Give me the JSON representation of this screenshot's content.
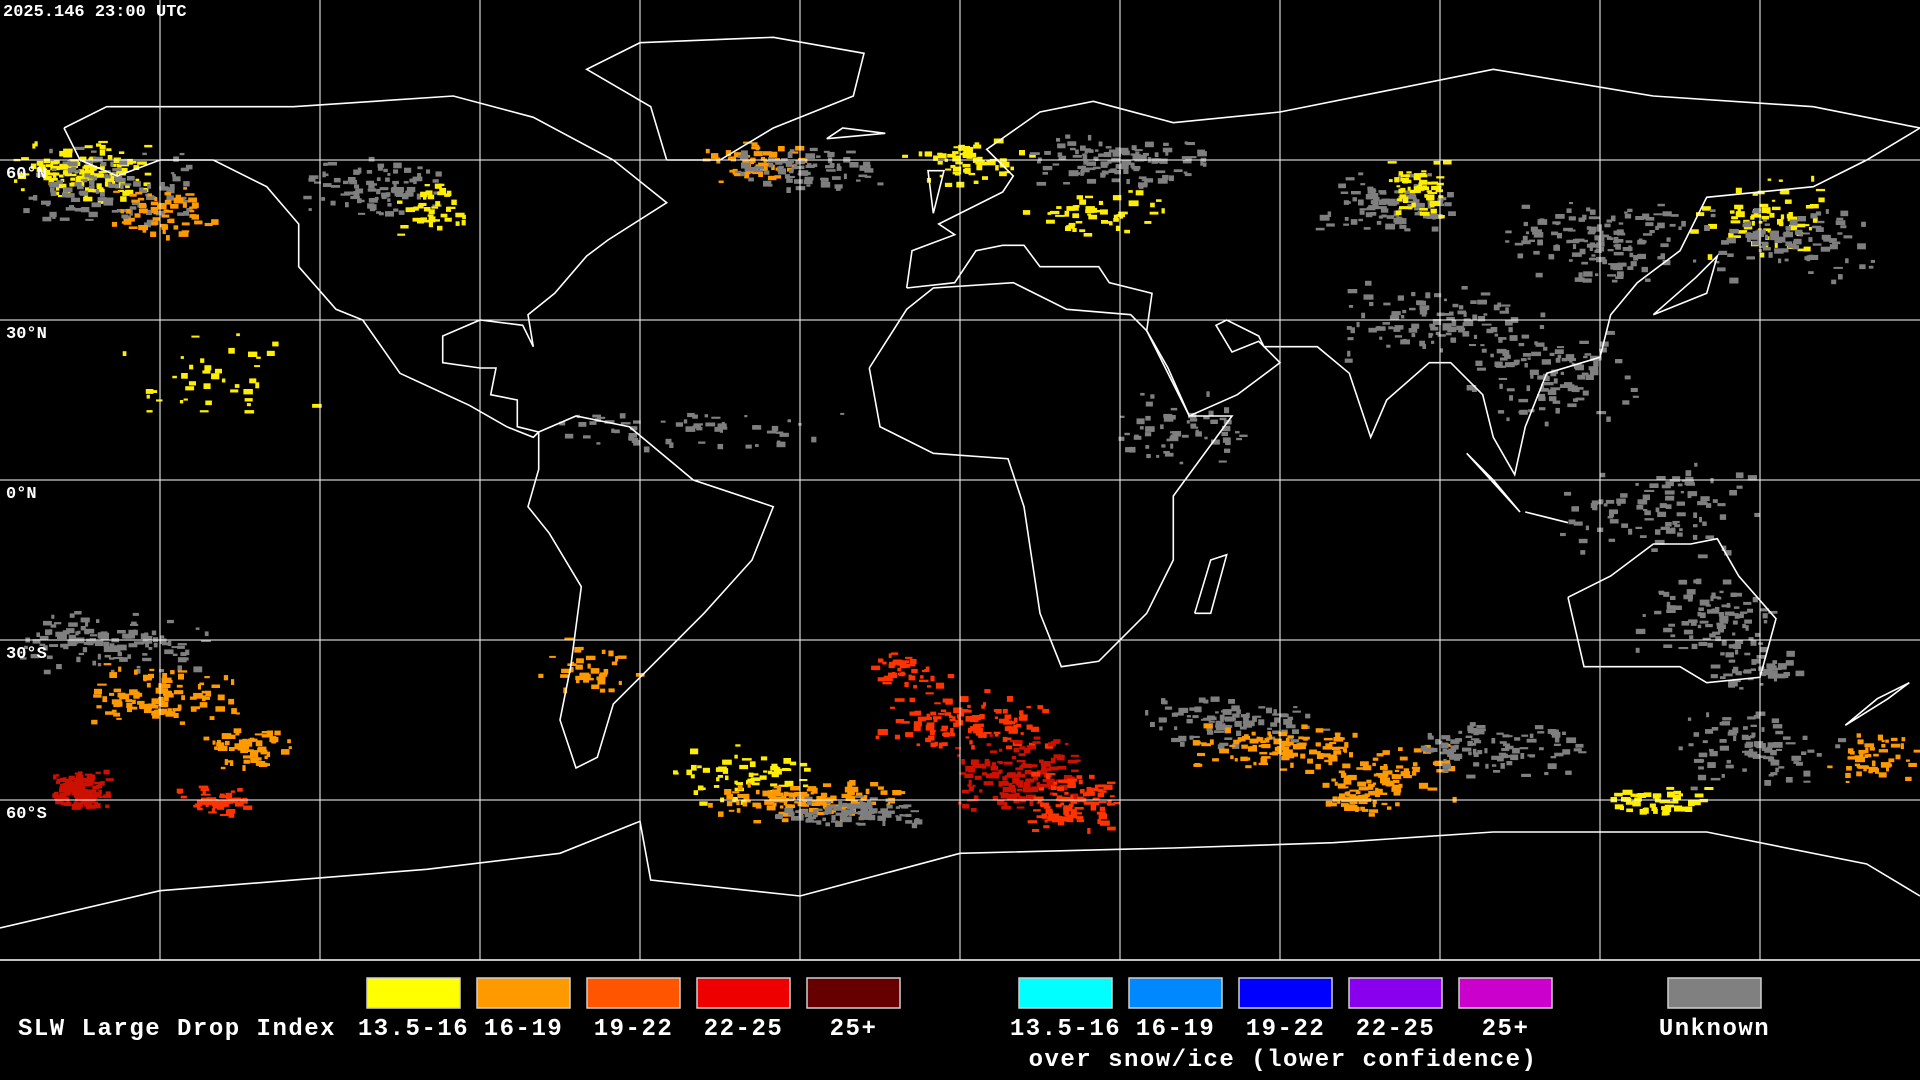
{
  "timestamp": "2025.146 23:00 UTC",
  "latitude_labels": [
    "60°N",
    "30°N",
    "0°N",
    "30°S",
    "60°S"
  ],
  "legend": {
    "title": "SLW Large Drop Index",
    "standard": [
      {
        "label": "13.5-16",
        "color": "#ffff00"
      },
      {
        "label": "16-19",
        "color": "#ff9900"
      },
      {
        "label": "19-22",
        "color": "#ff5500"
      },
      {
        "label": "22-25",
        "color": "#ee0000"
      },
      {
        "label": "25+",
        "color": "#660000"
      }
    ],
    "snow_ice": {
      "entries": [
        {
          "label": "13.5-16",
          "color": "#00ffff"
        },
        {
          "label": "16-19",
          "color": "#0088ff"
        },
        {
          "label": "19-22",
          "color": "#0000ff"
        },
        {
          "label": "22-25",
          "color": "#8800ee"
        },
        {
          "label": "25+",
          "color": "#cc00cc"
        }
      ],
      "caption": "over snow/ice (lower confidence)"
    },
    "unknown": {
      "label": "Unknown",
      "color": "#808080"
    }
  }
}
